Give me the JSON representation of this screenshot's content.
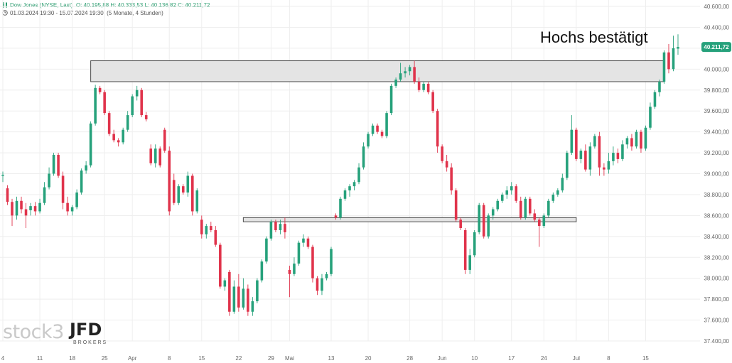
{
  "header": {
    "instrument": "Dow Jones (NYSE, Last)",
    "ohlc": "O: 40.195,88  H: 40.333,53  L: 40.136,82  C: 40.211,72",
    "range": "01.03.2024 19:30 - 15.07.2024 19:30",
    "interval": "(5 Monate, 4 Stunden)"
  },
  "annotation": "Hochs bestätigt",
  "logo": {
    "stock": "stock3",
    "jfd": "JFD",
    "brokers": "BROKERS"
  },
  "colors": {
    "up": "#26a17b",
    "down": "#e0334b",
    "zone_fill": "#e4e4e4",
    "zone_stroke": "#4a4a4a",
    "price_tag": "#26a17b",
    "grid": "#eeeeee"
  },
  "chart_data": {
    "type": "candlestick",
    "y_axis": {
      "min": 37400,
      "max": 40600,
      "ticks": [
        37400,
        37600,
        37800,
        38000,
        38200,
        38400,
        38600,
        38800,
        39000,
        39200,
        39400,
        39600,
        39800,
        40000,
        40200,
        40400,
        40600
      ],
      "tick_labels": [
        "37.400,00",
        "37.600,00",
        "37.800,00",
        "38.000,00",
        "38.200,00",
        "38.400,00",
        "38.600,00",
        "38.800,00",
        "39.000,00",
        "39.200,00",
        "39.400,00",
        "39.600,00",
        "39.800,00",
        "40.000,00",
        "40.200,00",
        "40.400,00",
        "40.600,00"
      ]
    },
    "x_axis": {
      "ticks": [
        {
          "label": "4",
          "i": 0
        },
        {
          "label": "11",
          "i": 8
        },
        {
          "label": "18",
          "i": 15
        },
        {
          "label": "25",
          "i": 22
        },
        {
          "label": "Apr",
          "i": 28
        },
        {
          "label": "8",
          "i": 36
        },
        {
          "label": "15",
          "i": 43
        },
        {
          "label": "22",
          "i": 51
        },
        {
          "label": "29",
          "i": 58
        },
        {
          "label": "Mai",
          "i": 62
        },
        {
          "label": "13",
          "i": 71
        },
        {
          "label": "20",
          "i": 79
        },
        {
          "label": "28",
          "i": 88
        },
        {
          "label": "Jun",
          "i": 95
        },
        {
          "label": "10",
          "i": 102
        },
        {
          "label": "17",
          "i": 110
        },
        {
          "label": "24",
          "i": 117
        },
        {
          "label": "Jul",
          "i": 124
        },
        {
          "label": "8",
          "i": 131
        },
        {
          "label": "15",
          "i": 139
        }
      ]
    },
    "last_price": "40.211,72",
    "last_value": 40211.72,
    "resistance_zone": {
      "from_i": 19,
      "to_i": 143,
      "low": 39880,
      "high": 40080
    },
    "support_zone": {
      "from_i": 52,
      "to_i": 124,
      "low": 38540,
      "high": 38580
    },
    "candles": [
      {
        "o": 38980,
        "h": 39020,
        "l": 38920,
        "c": 38990
      },
      {
        "o": 38860,
        "h": 38890,
        "l": 38700,
        "c": 38730
      },
      {
        "o": 38730,
        "h": 38760,
        "l": 38500,
        "c": 38600
      },
      {
        "o": 38600,
        "h": 38780,
        "l": 38560,
        "c": 38740
      },
      {
        "o": 38740,
        "h": 38780,
        "l": 38620,
        "c": 38660
      },
      {
        "o": 38660,
        "h": 38720,
        "l": 38480,
        "c": 38600
      },
      {
        "o": 38650,
        "h": 38720,
        "l": 38600,
        "c": 38690
      },
      {
        "o": 38690,
        "h": 38730,
        "l": 38600,
        "c": 38640
      },
      {
        "o": 38640,
        "h": 38760,
        "l": 38620,
        "c": 38720
      },
      {
        "o": 38720,
        "h": 38920,
        "l": 38700,
        "c": 38870
      },
      {
        "o": 38870,
        "h": 39060,
        "l": 38850,
        "c": 39000
      },
      {
        "o": 39000,
        "h": 39200,
        "l": 38980,
        "c": 39180
      },
      {
        "o": 39180,
        "h": 39200,
        "l": 38960,
        "c": 38980
      },
      {
        "o": 38980,
        "h": 39020,
        "l": 38660,
        "c": 38720
      },
      {
        "o": 38720,
        "h": 38780,
        "l": 38600,
        "c": 38640
      },
      {
        "o": 38640,
        "h": 38700,
        "l": 38600,
        "c": 38680
      },
      {
        "o": 38680,
        "h": 38850,
        "l": 38660,
        "c": 38820
      },
      {
        "o": 38820,
        "h": 39050,
        "l": 38800,
        "c": 39030
      },
      {
        "o": 39030,
        "h": 39120,
        "l": 39000,
        "c": 39080
      },
      {
        "o": 39080,
        "h": 39500,
        "l": 39060,
        "c": 39480
      },
      {
        "o": 39480,
        "h": 39850,
        "l": 39460,
        "c": 39820
      },
      {
        "o": 39820,
        "h": 39840,
        "l": 39760,
        "c": 39780
      },
      {
        "o": 39780,
        "h": 39800,
        "l": 39560,
        "c": 39580
      },
      {
        "o": 39580,
        "h": 39600,
        "l": 39360,
        "c": 39380
      },
      {
        "o": 39380,
        "h": 39420,
        "l": 39300,
        "c": 39320
      },
      {
        "o": 39320,
        "h": 39340,
        "l": 39260,
        "c": 39300
      },
      {
        "o": 39300,
        "h": 39440,
        "l": 39280,
        "c": 39420
      },
      {
        "o": 39420,
        "h": 39600,
        "l": 39400,
        "c": 39560
      },
      {
        "o": 39560,
        "h": 39760,
        "l": 39540,
        "c": 39740
      },
      {
        "o": 39740,
        "h": 39840,
        "l": 39700,
        "c": 39800
      },
      {
        "o": 39800,
        "h": 39820,
        "l": 39540,
        "c": 39560
      },
      {
        "o": 39560,
        "h": 39590,
        "l": 39500,
        "c": 39520
      },
      {
        "o": 39240,
        "h": 39280,
        "l": 39080,
        "c": 39100
      },
      {
        "o": 39100,
        "h": 39280,
        "l": 39060,
        "c": 39240
      },
      {
        "o": 39240,
        "h": 39260,
        "l": 39060,
        "c": 39080
      },
      {
        "o": 39420,
        "h": 39440,
        "l": 39200,
        "c": 39220
      },
      {
        "o": 39220,
        "h": 39260,
        "l": 38600,
        "c": 38640
      },
      {
        "o": 38940,
        "h": 39000,
        "l": 38700,
        "c": 38720
      },
      {
        "o": 38720,
        "h": 38900,
        "l": 38700,
        "c": 38880
      },
      {
        "o": 38880,
        "h": 38900,
        "l": 38800,
        "c": 38820
      },
      {
        "o": 38820,
        "h": 39020,
        "l": 38780,
        "c": 38980
      },
      {
        "o": 38980,
        "h": 39000,
        "l": 38600,
        "c": 38640
      },
      {
        "o": 38640,
        "h": 38860,
        "l": 38620,
        "c": 38840
      },
      {
        "o": 38560,
        "h": 38600,
        "l": 38380,
        "c": 38420
      },
      {
        "o": 38420,
        "h": 38520,
        "l": 38380,
        "c": 38500
      },
      {
        "o": 38500,
        "h": 38540,
        "l": 38440,
        "c": 38460
      },
      {
        "o": 38460,
        "h": 38500,
        "l": 38300,
        "c": 38320
      },
      {
        "o": 38320,
        "h": 38340,
        "l": 37900,
        "c": 37920
      },
      {
        "o": 37920,
        "h": 38000,
        "l": 37880,
        "c": 37980
      },
      {
        "o": 38060,
        "h": 38080,
        "l": 37640,
        "c": 37680
      },
      {
        "o": 37680,
        "h": 37980,
        "l": 37660,
        "c": 37920
      },
      {
        "o": 37920,
        "h": 38040,
        "l": 37680,
        "c": 37720
      },
      {
        "o": 37720,
        "h": 38000,
        "l": 37700,
        "c": 37900
      },
      {
        "o": 37900,
        "h": 37940,
        "l": 37640,
        "c": 37680
      },
      {
        "o": 37680,
        "h": 37820,
        "l": 37640,
        "c": 37780
      },
      {
        "o": 37780,
        "h": 38000,
        "l": 37760,
        "c": 37980
      },
      {
        "o": 37980,
        "h": 38180,
        "l": 37960,
        "c": 38160
      },
      {
        "o": 38160,
        "h": 38400,
        "l": 38140,
        "c": 38380
      },
      {
        "o": 38380,
        "h": 38560,
        "l": 38360,
        "c": 38540
      },
      {
        "o": 38540,
        "h": 38560,
        "l": 38440,
        "c": 38460
      },
      {
        "o": 38460,
        "h": 38560,
        "l": 38420,
        "c": 38520
      },
      {
        "o": 38520,
        "h": 38580,
        "l": 38380,
        "c": 38440
      },
      {
        "o": 38080,
        "h": 38120,
        "l": 37820,
        "c": 38040
      },
      {
        "o": 38040,
        "h": 38200,
        "l": 38020,
        "c": 38140
      },
      {
        "o": 38140,
        "h": 38360,
        "l": 38120,
        "c": 38340
      },
      {
        "o": 38340,
        "h": 38420,
        "l": 38300,
        "c": 38380
      },
      {
        "o": 38380,
        "h": 38400,
        "l": 38280,
        "c": 38300
      },
      {
        "o": 38300,
        "h": 38320,
        "l": 37960,
        "c": 38000
      },
      {
        "o": 38000,
        "h": 38020,
        "l": 37840,
        "c": 37880
      },
      {
        "o": 37880,
        "h": 38040,
        "l": 37840,
        "c": 38000
      },
      {
        "o": 38000,
        "h": 38060,
        "l": 37980,
        "c": 38040
      },
      {
        "o": 38040,
        "h": 38300,
        "l": 38020,
        "c": 38280
      },
      {
        "o": 38600,
        "h": 38620,
        "l": 38560,
        "c": 38580
      },
      {
        "o": 38580,
        "h": 38780,
        "l": 38560,
        "c": 38760
      },
      {
        "o": 38760,
        "h": 38860,
        "l": 38740,
        "c": 38840
      },
      {
        "o": 38840,
        "h": 38900,
        "l": 38780,
        "c": 38880
      },
      {
        "o": 38880,
        "h": 38940,
        "l": 38840,
        "c": 38920
      },
      {
        "o": 38920,
        "h": 39100,
        "l": 38900,
        "c": 39060
      },
      {
        "o": 39060,
        "h": 39300,
        "l": 39040,
        "c": 39260
      },
      {
        "o": 39260,
        "h": 39400,
        "l": 39240,
        "c": 39380
      },
      {
        "o": 39380,
        "h": 39480,
        "l": 39360,
        "c": 39460
      },
      {
        "o": 39460,
        "h": 39480,
        "l": 39380,
        "c": 39400
      },
      {
        "o": 39400,
        "h": 39420,
        "l": 39340,
        "c": 39360
      },
      {
        "o": 39360,
        "h": 39600,
        "l": 39340,
        "c": 39580
      },
      {
        "o": 39580,
        "h": 39860,
        "l": 39560,
        "c": 39840
      },
      {
        "o": 39840,
        "h": 39920,
        "l": 39820,
        "c": 39900
      },
      {
        "o": 39900,
        "h": 40060,
        "l": 39880,
        "c": 39960
      },
      {
        "o": 39960,
        "h": 40020,
        "l": 39920,
        "c": 39980
      },
      {
        "o": 39980,
        "h": 40040,
        "l": 39940,
        "c": 40020
      },
      {
        "o": 40020,
        "h": 40080,
        "l": 39860,
        "c": 39880
      },
      {
        "o": 39880,
        "h": 39920,
        "l": 39780,
        "c": 39800
      },
      {
        "o": 39800,
        "h": 39880,
        "l": 39780,
        "c": 39860
      },
      {
        "o": 39860,
        "h": 39880,
        "l": 39760,
        "c": 39780
      },
      {
        "o": 39780,
        "h": 39800,
        "l": 39580,
        "c": 39600
      },
      {
        "o": 39600,
        "h": 39620,
        "l": 39200,
        "c": 39260
      },
      {
        "o": 39260,
        "h": 39280,
        "l": 39100,
        "c": 39120
      },
      {
        "o": 39120,
        "h": 39180,
        "l": 39020,
        "c": 39060
      },
      {
        "o": 39060,
        "h": 39100,
        "l": 38800,
        "c": 38840
      },
      {
        "o": 38840,
        "h": 38860,
        "l": 38540,
        "c": 38560
      },
      {
        "o": 38560,
        "h": 38580,
        "l": 38460,
        "c": 38480
      },
      {
        "o": 38460,
        "h": 38480,
        "l": 38040,
        "c": 38080
      },
      {
        "o": 38080,
        "h": 38280,
        "l": 38040,
        "c": 38220
      },
      {
        "o": 38220,
        "h": 38460,
        "l": 38200,
        "c": 38440
      },
      {
        "o": 38440,
        "h": 38720,
        "l": 38420,
        "c": 38700
      },
      {
        "o": 38700,
        "h": 38720,
        "l": 38380,
        "c": 38400
      },
      {
        "o": 38400,
        "h": 38620,
        "l": 38380,
        "c": 38600
      },
      {
        "o": 38600,
        "h": 38680,
        "l": 38560,
        "c": 38660
      },
      {
        "o": 38660,
        "h": 38760,
        "l": 38640,
        "c": 38740
      },
      {
        "o": 38740,
        "h": 38820,
        "l": 38720,
        "c": 38800
      },
      {
        "o": 38800,
        "h": 38880,
        "l": 38760,
        "c": 38840
      },
      {
        "o": 38840,
        "h": 38920,
        "l": 38800,
        "c": 38880
      },
      {
        "o": 38880,
        "h": 38900,
        "l": 38720,
        "c": 38740
      },
      {
        "o": 38740,
        "h": 38780,
        "l": 38560,
        "c": 38580
      },
      {
        "o": 38580,
        "h": 38780,
        "l": 38560,
        "c": 38760
      },
      {
        "o": 38760,
        "h": 38780,
        "l": 38600,
        "c": 38620
      },
      {
        "o": 38620,
        "h": 38660,
        "l": 38540,
        "c": 38560
      },
      {
        "o": 38560,
        "h": 38580,
        "l": 38300,
        "c": 38500
      },
      {
        "o": 38500,
        "h": 38620,
        "l": 38480,
        "c": 38600
      },
      {
        "o": 38600,
        "h": 38760,
        "l": 38580,
        "c": 38740
      },
      {
        "o": 38740,
        "h": 38820,
        "l": 38720,
        "c": 38800
      },
      {
        "o": 38800,
        "h": 38860,
        "l": 38780,
        "c": 38840
      },
      {
        "o": 38840,
        "h": 39000,
        "l": 38820,
        "c": 38960
      },
      {
        "o": 38960,
        "h": 39220,
        "l": 38940,
        "c": 39200
      },
      {
        "o": 39200,
        "h": 39560,
        "l": 39180,
        "c": 39420
      },
      {
        "o": 39420,
        "h": 39440,
        "l": 39120,
        "c": 39140
      },
      {
        "o": 39140,
        "h": 39240,
        "l": 39100,
        "c": 39220
      },
      {
        "o": 39220,
        "h": 39280,
        "l": 39020,
        "c": 39040
      },
      {
        "o": 39040,
        "h": 39300,
        "l": 38980,
        "c": 39260
      },
      {
        "o": 39260,
        "h": 39380,
        "l": 39240,
        "c": 39360
      },
      {
        "o": 39360,
        "h": 39400,
        "l": 38980,
        "c": 39060
      },
      {
        "o": 39060,
        "h": 39100,
        "l": 38980,
        "c": 39040
      },
      {
        "o": 39040,
        "h": 39200,
        "l": 39000,
        "c": 39120
      },
      {
        "o": 39120,
        "h": 39260,
        "l": 39080,
        "c": 39200
      },
      {
        "o": 39200,
        "h": 39240,
        "l": 39100,
        "c": 39140
      },
      {
        "o": 39140,
        "h": 39320,
        "l": 39120,
        "c": 39280
      },
      {
        "o": 39280,
        "h": 39360,
        "l": 39240,
        "c": 39340
      },
      {
        "o": 39340,
        "h": 39380,
        "l": 39220,
        "c": 39260
      },
      {
        "o": 39260,
        "h": 39420,
        "l": 39240,
        "c": 39400
      },
      {
        "o": 39400,
        "h": 39420,
        "l": 39200,
        "c": 39240
      },
      {
        "o": 39240,
        "h": 39460,
        "l": 39220,
        "c": 39440
      },
      {
        "o": 39440,
        "h": 39680,
        "l": 39420,
        "c": 39640
      },
      {
        "o": 39640,
        "h": 39800,
        "l": 39620,
        "c": 39780
      },
      {
        "o": 39780,
        "h": 39900,
        "l": 39740,
        "c": 39880
      },
      {
        "o": 39880,
        "h": 40180,
        "l": 39860,
        "c": 40160
      },
      {
        "o": 40160,
        "h": 40240,
        "l": 39960,
        "c": 40000
      },
      {
        "o": 40000,
        "h": 40320,
        "l": 39980,
        "c": 40200
      },
      {
        "o": 40195.88,
        "h": 40333.53,
        "l": 40136.82,
        "c": 40211.72
      }
    ]
  }
}
